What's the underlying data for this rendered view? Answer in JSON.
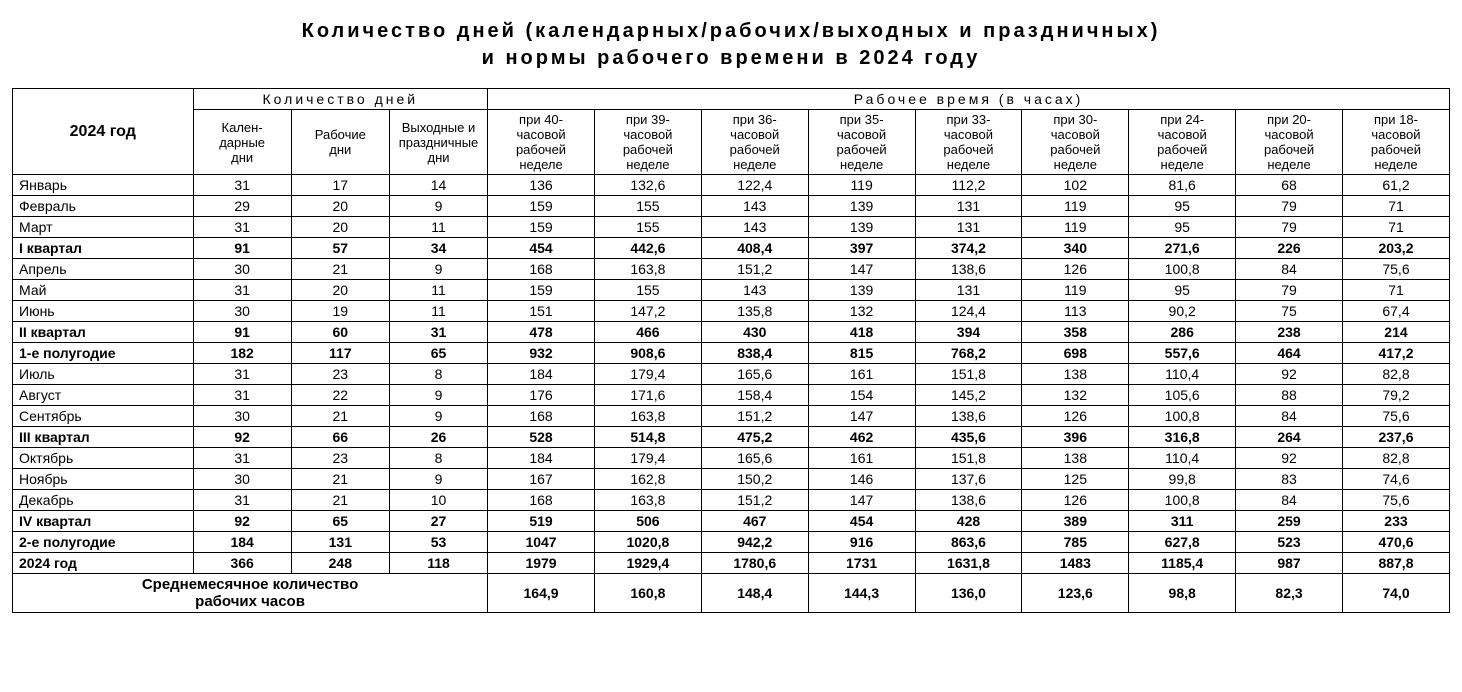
{
  "title_line1": "Количество дней (календарных/рабочих/выходных и праздничных)",
  "title_line2": "и нормы рабочего времени в 2024 году",
  "header": {
    "year": "2024 год",
    "days_group": "Количество дней",
    "hours_group": "Рабочее время (в часах)",
    "days_cols": [
      "Кален-\nдарные\nдни",
      "Рабочие\nдни",
      "Выходные и\nпраздничные\nдни"
    ],
    "hours_cols": [
      "при 40-\nчасовой\nрабочей\nнеделе",
      "при 39-\nчасовой\nрабочей\nнеделе",
      "при 36-\nчасовой\nрабочей\nнеделе",
      "при 35-\nчасовой\nрабочей\nнеделе",
      "при 33-\nчасовой\nрабочей\nнеделе",
      "при 30-\nчасовой\nрабочей\nнеделе",
      "при 24-\nчасовой\nрабочей\nнеделе",
      "при 20-\nчасовой\nрабочей\nнеделе",
      "при 18-\nчасовой\nрабочей\nнеделе"
    ]
  },
  "rows": [
    {
      "label": "Январь",
      "bold": false,
      "cells": [
        "31",
        "17",
        "14",
        "136",
        "132,6",
        "122,4",
        "119",
        "112,2",
        "102",
        "81,6",
        "68",
        "61,2"
      ]
    },
    {
      "label": "Февраль",
      "bold": false,
      "cells": [
        "29",
        "20",
        "9",
        "159",
        "155",
        "143",
        "139",
        "131",
        "119",
        "95",
        "79",
        "71"
      ]
    },
    {
      "label": "Март",
      "bold": false,
      "cells": [
        "31",
        "20",
        "11",
        "159",
        "155",
        "143",
        "139",
        "131",
        "119",
        "95",
        "79",
        "71"
      ]
    },
    {
      "label": "I квартал",
      "bold": true,
      "cells": [
        "91",
        "57",
        "34",
        "454",
        "442,6",
        "408,4",
        "397",
        "374,2",
        "340",
        "271,6",
        "226",
        "203,2"
      ]
    },
    {
      "label": "Апрель",
      "bold": false,
      "cells": [
        "30",
        "21",
        "9",
        "168",
        "163,8",
        "151,2",
        "147",
        "138,6",
        "126",
        "100,8",
        "84",
        "75,6"
      ]
    },
    {
      "label": "Май",
      "bold": false,
      "cells": [
        "31",
        "20",
        "11",
        "159",
        "155",
        "143",
        "139",
        "131",
        "119",
        "95",
        "79",
        "71"
      ]
    },
    {
      "label": "Июнь",
      "bold": false,
      "cells": [
        "30",
        "19",
        "11",
        "151",
        "147,2",
        "135,8",
        "132",
        "124,4",
        "113",
        "90,2",
        "75",
        "67,4"
      ]
    },
    {
      "label": "II квартал",
      "bold": true,
      "cells": [
        "91",
        "60",
        "31",
        "478",
        "466",
        "430",
        "418",
        "394",
        "358",
        "286",
        "238",
        "214"
      ]
    },
    {
      "label": "1-е полугодие",
      "bold": true,
      "cells": [
        "182",
        "117",
        "65",
        "932",
        "908,6",
        "838,4",
        "815",
        "768,2",
        "698",
        "557,6",
        "464",
        "417,2"
      ]
    },
    {
      "label": "Июль",
      "bold": false,
      "cells": [
        "31",
        "23",
        "8",
        "184",
        "179,4",
        "165,6",
        "161",
        "151,8",
        "138",
        "110,4",
        "92",
        "82,8"
      ]
    },
    {
      "label": "Август",
      "bold": false,
      "cells": [
        "31",
        "22",
        "9",
        "176",
        "171,6",
        "158,4",
        "154",
        "145,2",
        "132",
        "105,6",
        "88",
        "79,2"
      ]
    },
    {
      "label": "Сентябрь",
      "bold": false,
      "cells": [
        "30",
        "21",
        "9",
        "168",
        "163,8",
        "151,2",
        "147",
        "138,6",
        "126",
        "100,8",
        "84",
        "75,6"
      ]
    },
    {
      "label": "III квартал",
      "bold": true,
      "cells": [
        "92",
        "66",
        "26",
        "528",
        "514,8",
        "475,2",
        "462",
        "435,6",
        "396",
        "316,8",
        "264",
        "237,6"
      ]
    },
    {
      "label": "Октябрь",
      "bold": false,
      "cells": [
        "31",
        "23",
        "8",
        "184",
        "179,4",
        "165,6",
        "161",
        "151,8",
        "138",
        "110,4",
        "92",
        "82,8"
      ]
    },
    {
      "label": "Ноябрь",
      "bold": false,
      "cells": [
        "30",
        "21",
        "9",
        "167",
        "162,8",
        "150,2",
        "146",
        "137,6",
        "125",
        "99,8",
        "83",
        "74,6"
      ]
    },
    {
      "label": "Декабрь",
      "bold": false,
      "cells": [
        "31",
        "21",
        "10",
        "168",
        "163,8",
        "151,2",
        "147",
        "138,6",
        "126",
        "100,8",
        "84",
        "75,6"
      ]
    },
    {
      "label": "IV квартал",
      "bold": true,
      "cells": [
        "92",
        "65",
        "27",
        "519",
        "506",
        "467",
        "454",
        "428",
        "389",
        "311",
        "259",
        "233"
      ]
    },
    {
      "label": "2-е полугодие",
      "bold": true,
      "cells": [
        "184",
        "131",
        "53",
        "1047",
        "1020,8",
        "942,2",
        "916",
        "863,6",
        "785",
        "627,8",
        "523",
        "470,6"
      ]
    },
    {
      "label": "2024 год",
      "bold": true,
      "cells": [
        "366",
        "248",
        "118",
        "1979",
        "1929,4",
        "1780,6",
        "1731",
        "1631,8",
        "1483",
        "1185,4",
        "987",
        "887,8"
      ]
    }
  ],
  "avg_row": {
    "label": "Среднемесячное количество\nрабочих часов",
    "cells": [
      "164,9",
      "160,8",
      "148,4",
      "144,3",
      "136,0",
      "123,6",
      "98,8",
      "82,3",
      "74,0"
    ]
  }
}
